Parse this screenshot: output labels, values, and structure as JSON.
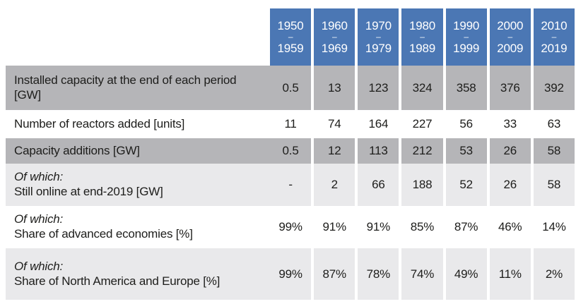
{
  "table": {
    "dash": "–",
    "colors": {
      "header_blue": "#4b77b4",
      "row_medium_gray": "#b5b5b8",
      "row_light_gray": "#e9e9eb",
      "text": "#1d1d1b",
      "header_text": "#ffffff"
    },
    "columns": [
      {
        "start": "1950",
        "end": "1959"
      },
      {
        "start": "1960",
        "end": "1969"
      },
      {
        "start": "1970",
        "end": "1979"
      },
      {
        "start": "1980",
        "end": "1989"
      },
      {
        "start": "1990",
        "end": "1999"
      },
      {
        "start": "2000",
        "end": "2009"
      },
      {
        "start": "2010",
        "end": "2019"
      }
    ],
    "rows": [
      {
        "prefix": "",
        "label": "Installed capacity at the end of each period [GW]",
        "values": [
          "0.5",
          "13",
          "123",
          "324",
          "358",
          "376",
          "392"
        ]
      },
      {
        "prefix": "",
        "label": "Number of reactors added [units]",
        "values": [
          "11",
          "74",
          "164",
          "227",
          "56",
          "33",
          "63"
        ]
      },
      {
        "prefix": "",
        "label": "Capacity additions [GW]",
        "values": [
          "0.5",
          "12",
          "113",
          "212",
          "53",
          "26",
          "58"
        ]
      },
      {
        "prefix": "Of which:",
        "label": "Still online at end-2019 [GW]",
        "values": [
          "-",
          "2",
          "66",
          "188",
          "52",
          "26",
          "58"
        ]
      },
      {
        "prefix": "Of which:",
        "label": "Share of advanced economies [%]",
        "values": [
          "99%",
          "91%",
          "91%",
          "85%",
          "87%",
          "46%",
          "14%"
        ]
      },
      {
        "prefix": "Of which:",
        "label": "Share of North America and Europe [%]",
        "values": [
          "99%",
          "87%",
          "78%",
          "74%",
          "49%",
          "11%",
          "2%"
        ]
      }
    ]
  }
}
